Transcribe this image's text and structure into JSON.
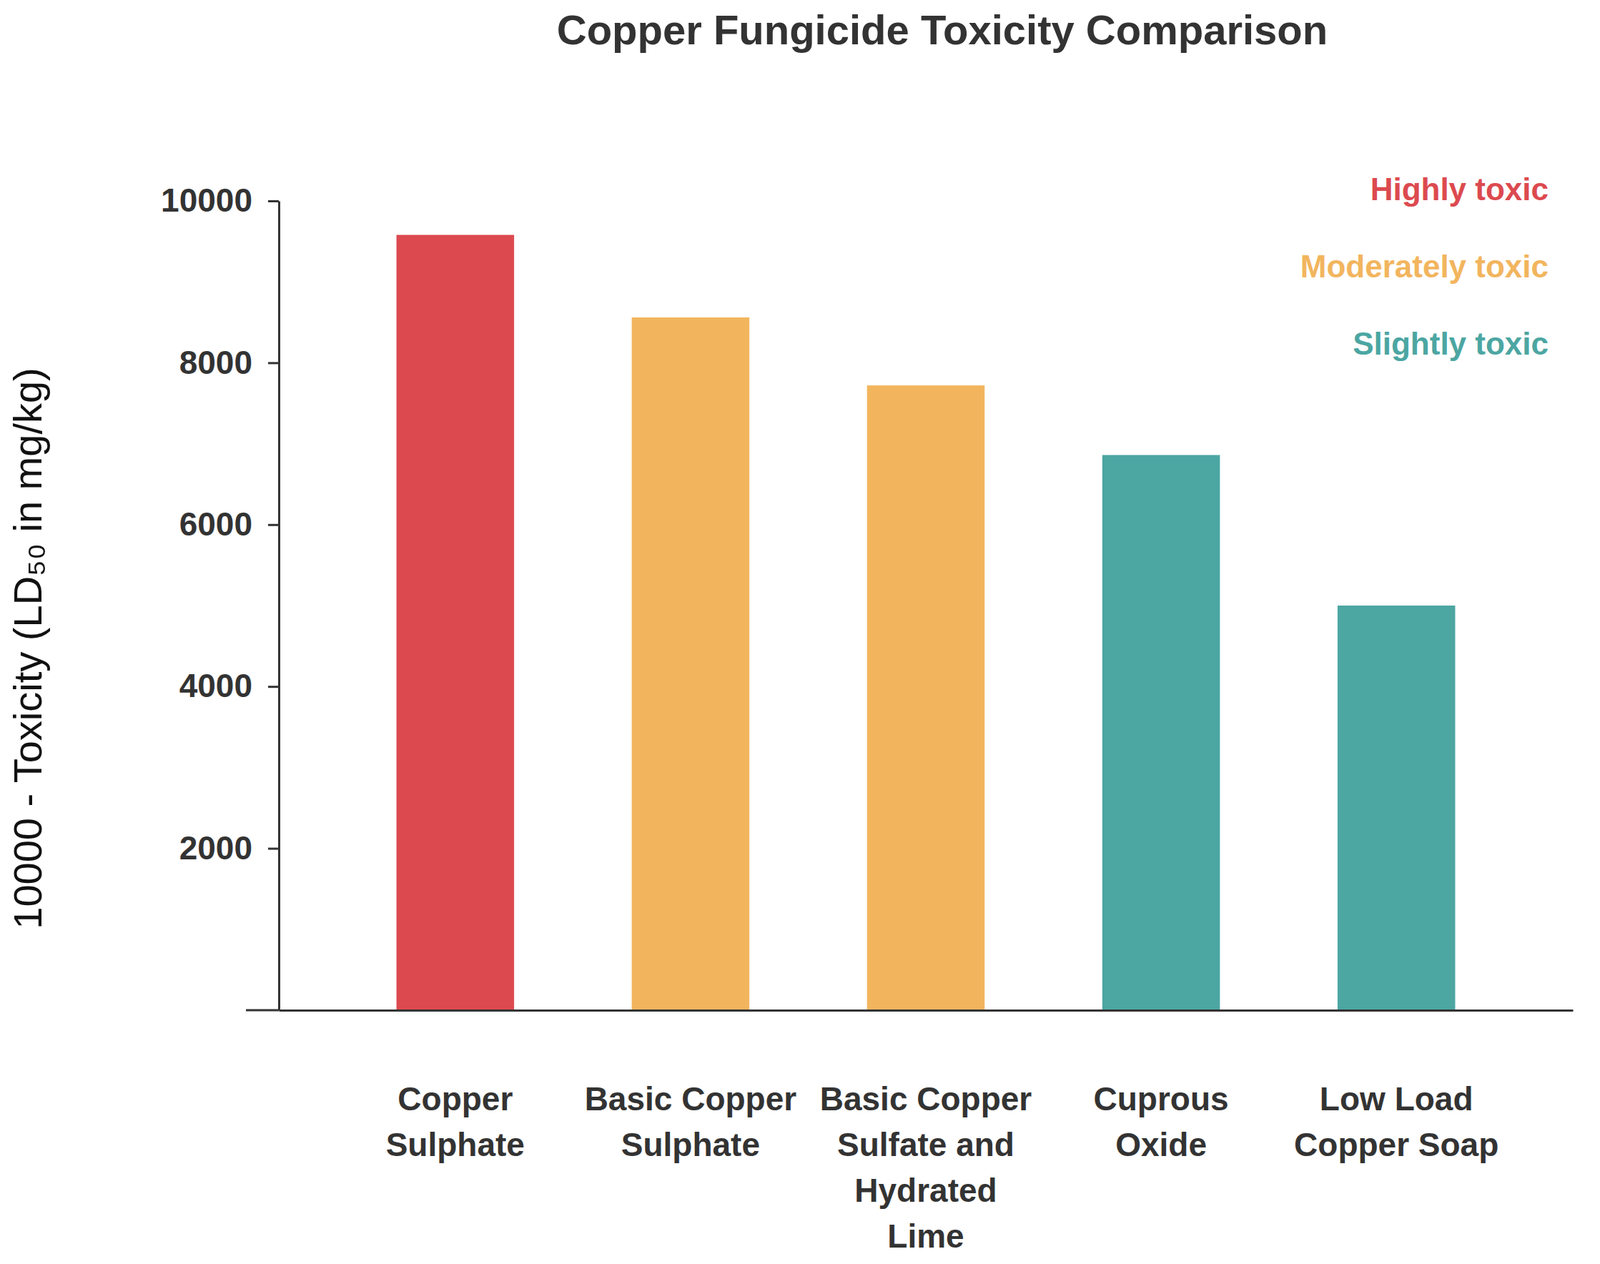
{
  "chart_data": {
    "type": "bar",
    "title": "Copper Fungicide Toxicity Comparison",
    "y_label": "10000 - Toxicity (LD₅₀ in mg/kg)",
    "categories": [
      "Copper Sulphate",
      "Basic Copper Sulphate",
      "Basic Copper Sulfate and Hydrated Lime",
      "Cuprous Oxide",
      "Low Load Copper Soap"
    ],
    "series": [
      {
        "name": "Highly toxic",
        "color": "#dc4a4f",
        "values": [
          9580,
          null,
          null,
          null,
          null
        ]
      },
      {
        "name": "Moderately toxic",
        "color": "#f2b55e",
        "values": [
          null,
          8560,
          7720,
          null,
          null
        ]
      },
      {
        "name": "Slightly toxic",
        "color": "#4ca6a2",
        "values": [
          null,
          null,
          null,
          6860,
          5000
        ]
      }
    ],
    "stacked": true,
    "legend": "top-right",
    "ylim": [
      0,
      10000
    ],
    "yticks": [
      2000,
      4000,
      6000,
      8000,
      10000
    ]
  }
}
